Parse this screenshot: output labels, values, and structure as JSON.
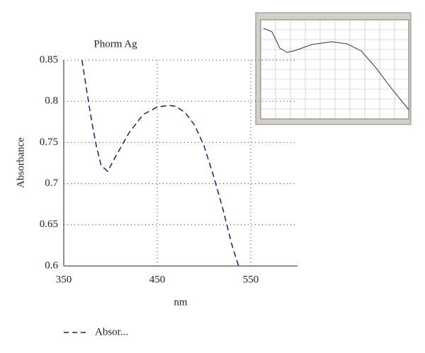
{
  "chart_data": {
    "type": "line",
    "title": "Phorm Ag",
    "x_label": "nm",
    "y_label": "Absorbance",
    "x": [
      369.5,
      375,
      380,
      385,
      390,
      397,
      405,
      410,
      420,
      435,
      450,
      462,
      470,
      480,
      490,
      500,
      510,
      520,
      530,
      537
    ],
    "series": [
      {
        "name": "Absor...",
        "color": "#1a1a8c",
        "values": [
          0.85,
          0.81,
          0.775,
          0.745,
          0.722,
          0.715,
          0.732,
          0.742,
          0.762,
          0.784,
          0.793,
          0.795,
          0.794,
          0.786,
          0.771,
          0.746,
          0.71,
          0.67,
          0.625,
          0.6
        ]
      }
    ],
    "xlim": [
      350,
      600
    ],
    "xticks": [
      350,
      450,
      550
    ],
    "ylim": [
      0.6,
      0.85
    ],
    "yticks": [
      0.6,
      0.65,
      0.7,
      0.75,
      0.8,
      0.85
    ],
    "grid": true
  }
}
